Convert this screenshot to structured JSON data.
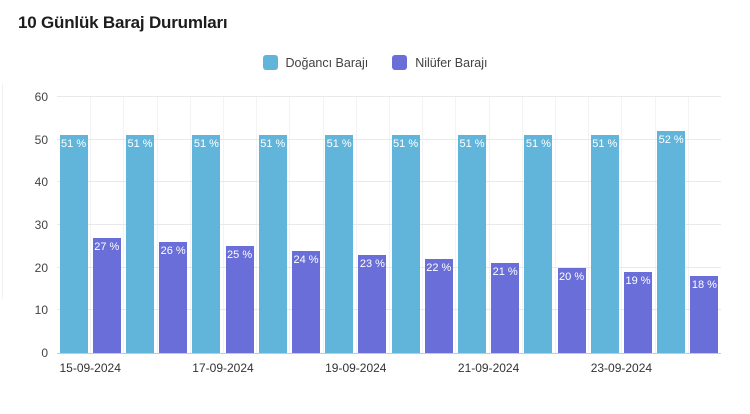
{
  "page": {
    "title": "10 Günlük Baraj Durumları"
  },
  "chart_data": {
    "type": "bar",
    "title": "10 Günlük Baraj Durumları",
    "n_groups": 10,
    "x_tick_labels": [
      "15-09-2024",
      "17-09-2024",
      "19-09-2024",
      "21-09-2024",
      "23-09-2024"
    ],
    "x_label_every_n_groups": 2,
    "series": [
      {
        "name": "Doğancı Barajı",
        "color": "#62b5da",
        "values": [
          51,
          51,
          51,
          51,
          51,
          51,
          51,
          51,
          51,
          52
        ]
      },
      {
        "name": "Nilüfer Barajı",
        "color": "#6a6ed8",
        "values": [
          27,
          26,
          25,
          24,
          23,
          22,
          21,
          20,
          19,
          18
        ]
      }
    ],
    "value_suffix": " %",
    "y_ticks": [
      0,
      10,
      20,
      30,
      40,
      50,
      60
    ],
    "ylim": [
      0,
      60
    ],
    "grid": true,
    "legend_position": "top-center",
    "bar_label_position": "inside-top",
    "bar_label_color": "#ffffff",
    "axis_line_color": "#c9c9c9"
  }
}
